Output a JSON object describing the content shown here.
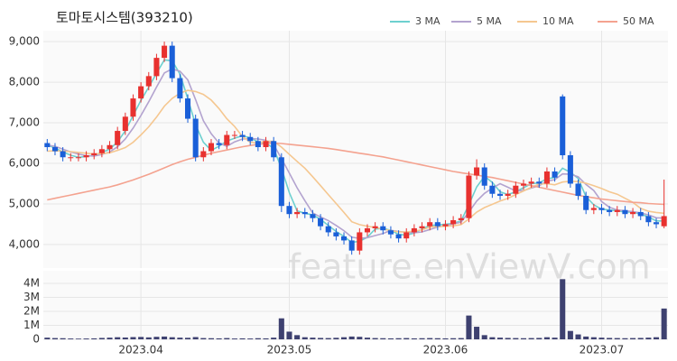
{
  "chart_data": {
    "type": "candlestick",
    "title": "토마토시스템(393210)",
    "watermark": "feature.enViewV.com",
    "categories": [
      null,
      null,
      null,
      null,
      null,
      null,
      null,
      null,
      null,
      null,
      null,
      null,
      "2023.04",
      null,
      null,
      null,
      null,
      null,
      null,
      null,
      null,
      null,
      null,
      null,
      null,
      null,
      null,
      null,
      null,
      null,
      null,
      "2023.05",
      null,
      null,
      null,
      null,
      null,
      null,
      null,
      null,
      null,
      null,
      null,
      null,
      null,
      null,
      null,
      null,
      null,
      null,
      null,
      "2023.06",
      null,
      null,
      null,
      null,
      null,
      null,
      null,
      null,
      null,
      null,
      null,
      null,
      null,
      null,
      null,
      null,
      null,
      null,
      null,
      "2023.07",
      null,
      null,
      null,
      null,
      null,
      null,
      null,
      null
    ],
    "open": [
      6500,
      6400,
      6300,
      6150,
      6150,
      6150,
      6200,
      6250,
      6350,
      6450,
      6800,
      7150,
      7600,
      7900,
      8150,
      8600,
      8900,
      8100,
      7600,
      7100,
      6150,
      6300,
      6500,
      6450,
      6700,
      6700,
      6650,
      6550,
      6400,
      6550,
      6150,
      4950,
      4750,
      4800,
      4750,
      4650,
      4450,
      4300,
      4200,
      4100,
      3850,
      4300,
      4400,
      4450,
      4350,
      4250,
      4150,
      4300,
      4400,
      4450,
      4550,
      4450,
      4500,
      4600,
      4650,
      5700,
      5900,
      5450,
      5250,
      5200,
      5250,
      5450,
      5500,
      5550,
      5500,
      5800,
      7650,
      6200,
      5500,
      5200,
      4850,
      4900,
      4850,
      4800,
      4850,
      4750,
      4800,
      4700,
      4550,
      4450
    ],
    "high": [
      6600,
      6500,
      6400,
      6250,
      6250,
      6300,
      6350,
      6450,
      6550,
      6900,
      7250,
      7700,
      8000,
      8250,
      8700,
      9000,
      9000,
      8200,
      7700,
      7200,
      6400,
      6600,
      6600,
      6800,
      6800,
      6800,
      6750,
      6650,
      6650,
      6650,
      6250,
      5050,
      4900,
      4900,
      4850,
      4750,
      4550,
      4400,
      4300,
      4200,
      4400,
      4500,
      4550,
      4550,
      4450,
      4350,
      4400,
      4500,
      4550,
      4650,
      4650,
      4600,
      4700,
      4750,
      5800,
      6100,
      6000,
      5550,
      5350,
      5350,
      5550,
      5600,
      5650,
      5650,
      5900,
      5900,
      7700,
      6300,
      5600,
      5300,
      5000,
      5000,
      4950,
      4950,
      4950,
      4900,
      4900,
      4800,
      4650,
      5600
    ],
    "low": [
      6300,
      6200,
      6050,
      6050,
      6050,
      6050,
      6100,
      6150,
      6250,
      6350,
      6700,
      7050,
      7500,
      7800,
      8050,
      8500,
      8000,
      7500,
      7000,
      6050,
      6050,
      6200,
      6350,
      6350,
      6600,
      6550,
      6450,
      6300,
      6300,
      6050,
      4800,
      4650,
      4650,
      4650,
      4550,
      4350,
      4200,
      4100,
      4000,
      3750,
      3750,
      4200,
      4300,
      4250,
      4150,
      4050,
      4050,
      4200,
      4300,
      4350,
      4350,
      4350,
      4400,
      4500,
      4550,
      5600,
      5350,
      5150,
      5100,
      5100,
      5150,
      5350,
      5400,
      5400,
      5400,
      5550,
      6100,
      5400,
      5100,
      4750,
      4750,
      4750,
      4700,
      4700,
      4650,
      4650,
      4600,
      4450,
      4400,
      4400
    ],
    "close": [
      6400,
      6300,
      6150,
      6150,
      6150,
      6200,
      6250,
      6350,
      6450,
      6800,
      7150,
      7600,
      7900,
      8150,
      8600,
      8900,
      8100,
      7600,
      7100,
      6150,
      6300,
      6500,
      6450,
      6700,
      6700,
      6650,
      6550,
      6400,
      6550,
      6150,
      4950,
      4750,
      4800,
      4750,
      4650,
      4450,
      4300,
      4200,
      4100,
      3850,
      4300,
      4400,
      4450,
      4350,
      4250,
      4150,
      4300,
      4400,
      4450,
      4550,
      4450,
      4500,
      4600,
      4650,
      5700,
      5900,
      5450,
      5250,
      5200,
      5250,
      5450,
      5500,
      5550,
      5500,
      5800,
      5650,
      6200,
      5500,
      5200,
      4850,
      4900,
      4850,
      4800,
      4850,
      4750,
      4800,
      4700,
      4550,
      4500,
      4700
    ],
    "volume": [
      120000,
      90000,
      80000,
      60000,
      50000,
      60000,
      70000,
      100000,
      120000,
      150000,
      130000,
      160000,
      170000,
      140000,
      180000,
      200000,
      150000,
      120000,
      110000,
      160000,
      90000,
      80000,
      70000,
      90000,
      60000,
      70000,
      60000,
      80000,
      70000,
      120000,
      1500000,
      550000,
      300000,
      150000,
      120000,
      100000,
      90000,
      110000,
      150000,
      200000,
      180000,
      120000,
      90000,
      80000,
      70000,
      80000,
      90000,
      70000,
      80000,
      90000,
      80000,
      70000,
      80000,
      90000,
      1700000,
      900000,
      300000,
      150000,
      120000,
      100000,
      90000,
      80000,
      90000,
      100000,
      150000,
      120000,
      4300000,
      600000,
      350000,
      200000,
      150000,
      120000,
      100000,
      90000,
      80000,
      90000,
      100000,
      120000,
      150000,
      2200000
    ],
    "ma": [
      {
        "name": "3 MA",
        "color": "#6dd0cf",
        "values": [
          6450,
          6380,
          6280,
          6200,
          6150,
          6170,
          6200,
          6270,
          6350,
          6530,
          6800,
          7180,
          7550,
          7880,
          8220,
          8550,
          8530,
          8200,
          7600,
          6950,
          6520,
          6320,
          6420,
          6550,
          6620,
          6680,
          6630,
          6530,
          6500,
          6370,
          5880,
          5280,
          4830,
          4770,
          4730,
          4620,
          4470,
          4320,
          4200,
          4050,
          4080,
          4180,
          4380,
          4400,
          4350,
          4250,
          4230,
          4280,
          4380,
          4470,
          4480,
          4500,
          4520,
          4580,
          4980,
          5420,
          5680,
          5530,
          5300,
          5230,
          5300,
          5400,
          5500,
          5520,
          5620,
          5650,
          5880,
          5780,
          5630,
          5180,
          4980,
          4870,
          4850,
          4830,
          4800,
          4800,
          4750,
          4680,
          4580,
          4580
        ]
      },
      {
        "name": "5 MA",
        "color": "#b3a3cf",
        "values": [
          6450,
          6420,
          6350,
          6280,
          6230,
          6190,
          6180,
          6220,
          6280,
          6410,
          6600,
          6870,
          7180,
          7520,
          7880,
          8230,
          8330,
          8270,
          8060,
          7570,
          7050,
          6730,
          6500,
          6420,
          6530,
          6600,
          6610,
          6600,
          6570,
          6460,
          6120,
          5760,
          5400,
          5080,
          4780,
          4680,
          4590,
          4470,
          4340,
          4180,
          4150,
          4170,
          4220,
          4270,
          4350,
          4320,
          4300,
          4290,
          4310,
          4370,
          4430,
          4470,
          4510,
          4550,
          4800,
          5070,
          5260,
          5390,
          5500,
          5410,
          5320,
          5330,
          5390,
          5450,
          5560,
          5600,
          5740,
          5730,
          5670,
          5480,
          5330,
          5060,
          4920,
          4850,
          4830,
          4810,
          4780,
          4730,
          4660,
          4650
        ]
      },
      {
        "name": "10 MA",
        "color": "#f5c790",
        "values": [
          6300,
          6310,
          6300,
          6290,
          6270,
          6250,
          6230,
          6240,
          6260,
          6320,
          6390,
          6520,
          6700,
          6900,
          7140,
          7410,
          7600,
          7730,
          7800,
          7770,
          7700,
          7560,
          7350,
          7100,
          6910,
          6660,
          6520,
          6500,
          6550,
          6540,
          6400,
          6220,
          6050,
          5880,
          5670,
          5450,
          5230,
          5010,
          4790,
          4560,
          4490,
          4450,
          4420,
          4380,
          4340,
          4310,
          4310,
          4330,
          4360,
          4430,
          4440,
          4450,
          4460,
          4490,
          4630,
          4800,
          4910,
          4990,
          5070,
          5140,
          5230,
          5320,
          5410,
          5490,
          5500,
          5470,
          5540,
          5560,
          5550,
          5510,
          5450,
          5380,
          5300,
          5240,
          5140,
          5040,
          4890,
          4820,
          4790,
          4770
        ]
      },
      {
        "name": "50 MA",
        "color": "#f4a28f",
        "values": [
          5100,
          5140,
          5180,
          5220,
          5260,
          5300,
          5340,
          5380,
          5420,
          5470,
          5530,
          5590,
          5660,
          5730,
          5810,
          5890,
          5970,
          6040,
          6100,
          6150,
          6200,
          6250,
          6290,
          6330,
          6370,
          6410,
          6440,
          6470,
          6490,
          6500,
          6490,
          6470,
          6450,
          6430,
          6410,
          6390,
          6370,
          6340,
          6310,
          6280,
          6250,
          6220,
          6190,
          6160,
          6120,
          6080,
          6040,
          6000,
          5960,
          5920,
          5880,
          5840,
          5800,
          5770,
          5740,
          5710,
          5680,
          5650,
          5610,
          5570,
          5530,
          5490,
          5450,
          5410,
          5370,
          5330,
          5290,
          5250,
          5210,
          5180,
          5150,
          5120,
          5100,
          5080,
          5060,
          5040,
          5030,
          5010,
          5000,
          4990
        ]
      }
    ],
    "up_color": "#e8312f",
    "down_color": "#1a5fd8",
    "volume_color": "#3e4170",
    "ylim": [
      3420,
      9270
    ],
    "yticks": [
      {
        "value": 4000,
        "label": "4,000"
      },
      {
        "value": 5000,
        "label": "5,000"
      },
      {
        "value": 6000,
        "label": "6,000"
      },
      {
        "value": 7000,
        "label": "7,000"
      },
      {
        "value": 8000,
        "label": "8,000"
      },
      {
        "value": 9000,
        "label": "9,000"
      }
    ],
    "volume_ylim": [
      0,
      4900000
    ],
    "volume_yticks": [
      0,
      {
        "value": 1000000,
        "label": "1M"
      },
      {
        "value": 2000000,
        "label": "2M"
      },
      {
        "value": 3000000,
        "label": "3M"
      },
      {
        "value": 4000000,
        "label": "4M"
      }
    ],
    "grid": true
  }
}
